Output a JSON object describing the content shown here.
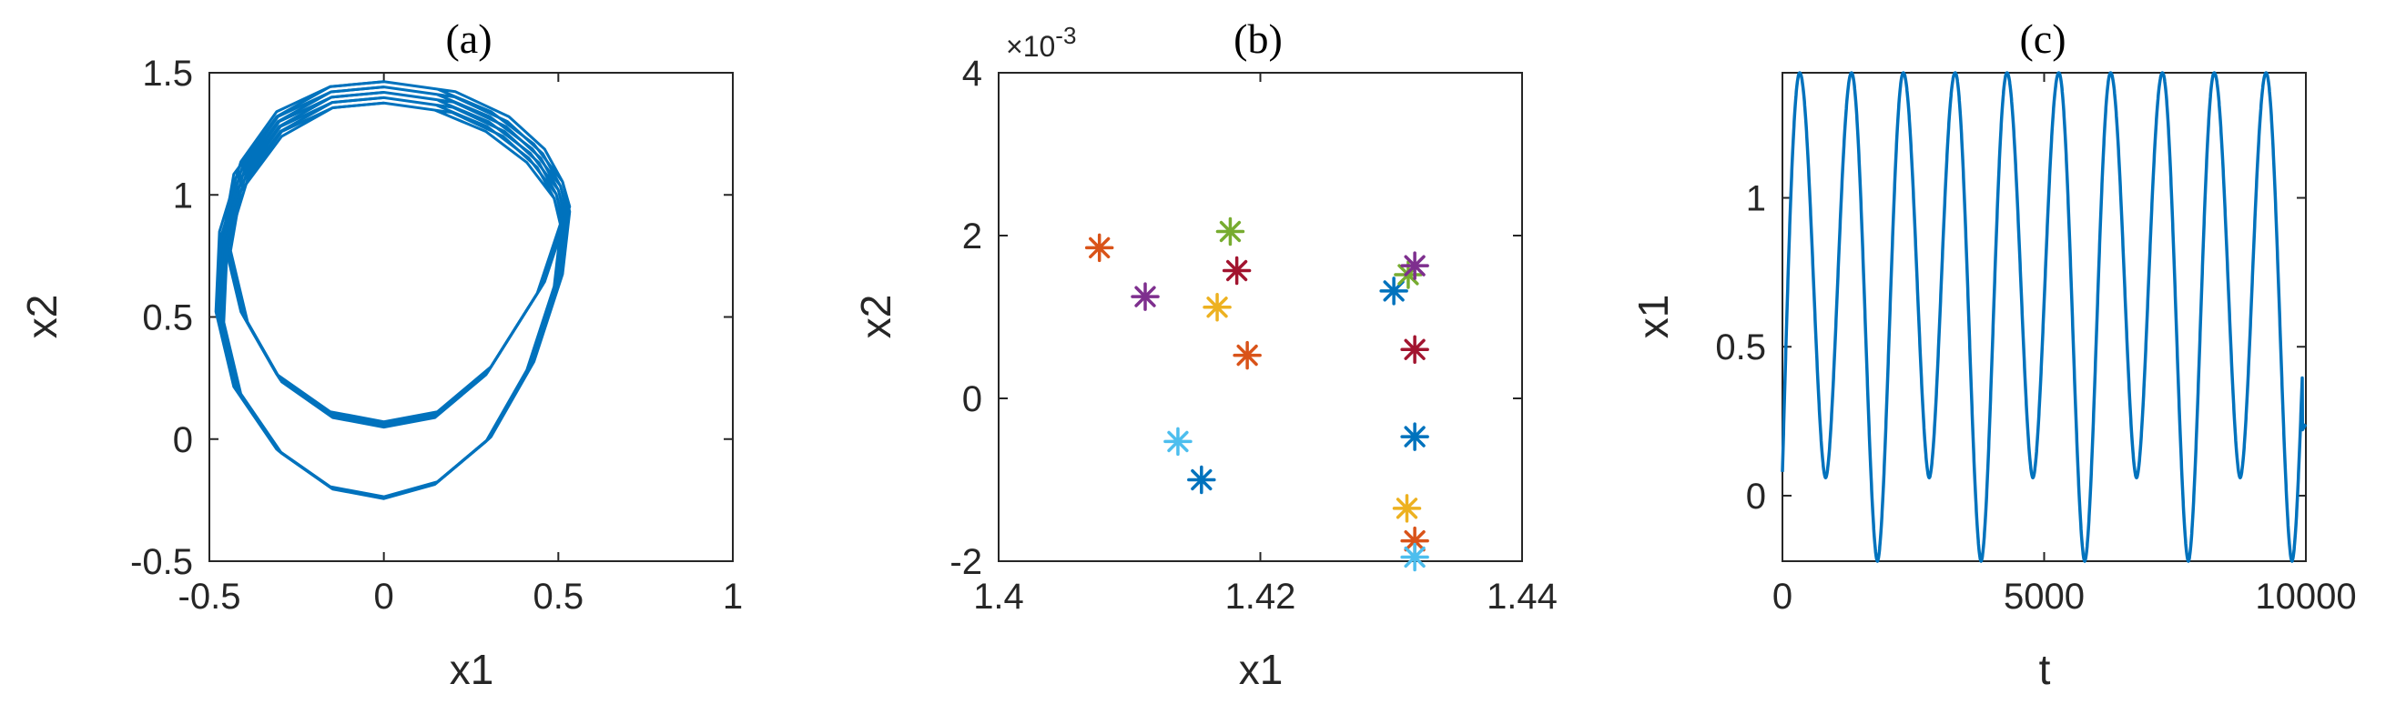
{
  "chart_data": [
    {
      "type": "line",
      "title": "(a)",
      "xlabel": "x1",
      "ylabel": "x2",
      "xlim": [
        -0.5,
        1
      ],
      "ylim": [
        -0.5,
        1.5
      ],
      "xticks": [
        "-0.5",
        "0",
        "0.5",
        "1"
      ],
      "yticks": [
        "-0.5",
        "0",
        "0.5",
        "1",
        "1.5"
      ],
      "color": "#0072BD",
      "series": [
        {
          "x": [
            0.0,
            0.2,
            0.35,
            0.45,
            0.5,
            0.52,
            0.45,
            0.3,
            0.15,
            0.0,
            -0.15,
            -0.3,
            -0.4,
            -0.45,
            -0.42,
            -0.3,
            -0.15,
            0.0,
            0.15,
            0.3,
            0.42,
            0.5
          ],
          "y": [
            1.42,
            1.38,
            1.28,
            1.15,
            1.02,
            0.92,
            0.62,
            0.28,
            0.1,
            0.06,
            0.1,
            0.25,
            0.5,
            0.8,
            1.05,
            1.28,
            1.4,
            1.42,
            1.39,
            1.3,
            1.17,
            1.02
          ]
        },
        {
          "x": [
            0.5,
            0.52,
            0.5,
            0.42,
            0.3,
            0.15,
            0.0,
            -0.15,
            -0.3,
            -0.42,
            -0.47,
            -0.46,
            -0.4,
            -0.3,
            -0.15,
            0.0
          ],
          "y": [
            1.02,
            0.9,
            0.65,
            0.3,
            0.0,
            -0.18,
            -0.24,
            -0.2,
            -0.05,
            0.2,
            0.5,
            0.82,
            1.1,
            1.3,
            1.4,
            1.42
          ]
        }
      ]
    },
    {
      "type": "scatter",
      "title": "(b)",
      "xlabel": "x1",
      "ylabel": "x2",
      "xlim": [
        1.4,
        1.44
      ],
      "ylim": [
        -0.002,
        0.004
      ],
      "xticks": [
        "1.4",
        "1.42",
        "1.44"
      ],
      "yticks": [
        "-2",
        "0",
        "2",
        "4"
      ],
      "yexponent": "×10",
      "yexponent_power": "-3",
      "marker": "*",
      "points": [
        {
          "x": 1.4077,
          "y": 0.00185,
          "color": "#D95319"
        },
        {
          "x": 1.4112,
          "y": 0.00125,
          "color": "#7E2F8E"
        },
        {
          "x": 1.4167,
          "y": 0.00112,
          "color": "#EDB120"
        },
        {
          "x": 1.4177,
          "y": 0.00205,
          "color": "#77AC30"
        },
        {
          "x": 1.4182,
          "y": 0.00157,
          "color": "#A2142F"
        },
        {
          "x": 1.419,
          "y": 0.00053,
          "color": "#D95319"
        },
        {
          "x": 1.4137,
          "y": -0.00053,
          "color": "#4DBEEE"
        },
        {
          "x": 1.4155,
          "y": -0.001,
          "color": "#0072BD"
        },
        {
          "x": 1.4302,
          "y": 0.00132,
          "color": "#0072BD"
        },
        {
          "x": 1.4313,
          "y": 0.00152,
          "color": "#77AC30"
        },
        {
          "x": 1.4318,
          "y": 0.00163,
          "color": "#7E2F8E"
        },
        {
          "x": 1.4318,
          "y": 0.0006,
          "color": "#A2142F"
        },
        {
          "x": 1.4318,
          "y": -0.00047,
          "color": "#0072BD"
        },
        {
          "x": 1.4312,
          "y": -0.00135,
          "color": "#EDB120"
        },
        {
          "x": 1.4318,
          "y": -0.00175,
          "color": "#D95319"
        },
        {
          "x": 1.4318,
          "y": -0.00195,
          "color": "#4DBEEE"
        }
      ]
    },
    {
      "type": "line",
      "title": "(c)",
      "xlabel": "t",
      "ylabel": "x1",
      "xlim": [
        0,
        10000
      ],
      "ylim": [
        -0.22,
        1.42
      ],
      "xticks": [
        "0",
        "5000",
        "10000"
      ],
      "yticks": [
        "0",
        "0.5",
        "1"
      ],
      "color": "#0072BD",
      "oscillation": {
        "period": 990,
        "first_peak_t": 330,
        "max": 1.42,
        "shallow_min": 0.06,
        "deep_min": -0.22,
        "deep_min_t": [
          1830,
          3810,
          5790,
          7770,
          9750
        ],
        "start_value": 0.08,
        "end_value": 0.22
      }
    }
  ]
}
